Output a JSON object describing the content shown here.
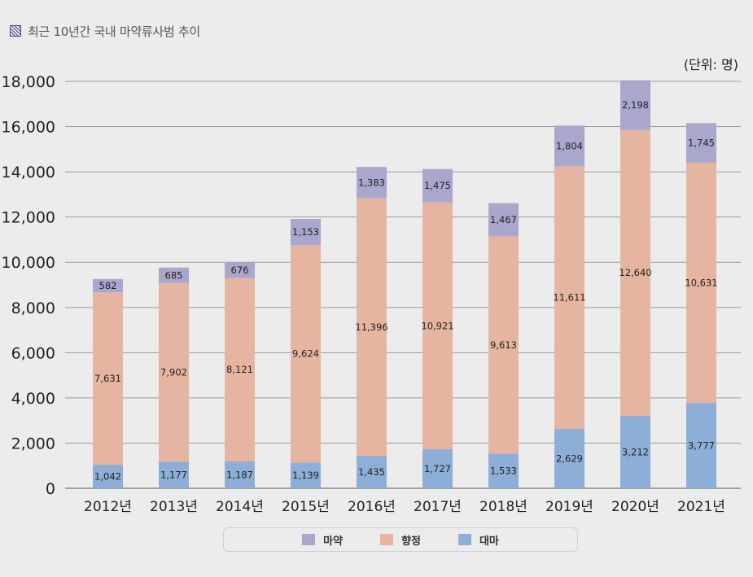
{
  "title": "최근 10년간 국내 마약류사범 추이",
  "unit_label": "(단위: 명)",
  "chart_data": {
    "type": "bar",
    "stacked": true,
    "title": "최근 10년간 국내 마약류사범 추이",
    "categories": [
      "2012년",
      "2013년",
      "2014년",
      "2015년",
      "2016년",
      "2017년",
      "2018년",
      "2019년",
      "2020년",
      "2021년"
    ],
    "series": [
      {
        "name": "대마",
        "color": "#8daed6",
        "values": [
          1042,
          1177,
          1187,
          1139,
          1435,
          1727,
          1533,
          2629,
          3212,
          3777
        ]
      },
      {
        "name": "향정",
        "color": "#e5b5a1",
        "values": [
          7631,
          7902,
          8121,
          9624,
          11396,
          10921,
          9613,
          11611,
          12640,
          10631
        ]
      },
      {
        "name": "마약",
        "color": "#a9a7cc",
        "values": [
          582,
          685,
          676,
          1153,
          1383,
          1475,
          1467,
          1804,
          2198,
          1745
        ]
      }
    ],
    "y_ticks": [
      "0",
      "2,000",
      "4,000",
      "6,000",
      "8,000",
      "10,000",
      "12,000",
      "14,000",
      "16,000",
      "18,000"
    ],
    "ylim": [
      0,
      18000
    ],
    "grid": true,
    "legend_position": "bottom"
  },
  "legend": [
    {
      "label": "마약",
      "color": "#a9a7cc"
    },
    {
      "label": "향정",
      "color": "#e5b5a1"
    },
    {
      "label": "대마",
      "color": "#8daed6"
    }
  ]
}
